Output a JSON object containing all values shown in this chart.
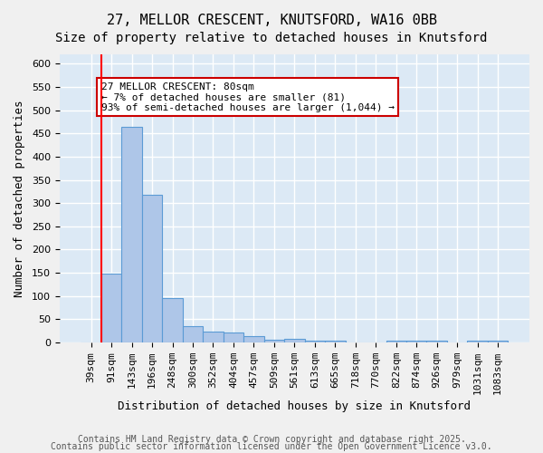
{
  "title1": "27, MELLOR CRESCENT, KNUTSFORD, WA16 0BB",
  "title2": "Size of property relative to detached houses in Knutsford",
  "xlabel": "Distribution of detached houses by size in Knutsford",
  "ylabel": "Number of detached properties",
  "categories": [
    "39sqm",
    "91sqm",
    "143sqm",
    "196sqm",
    "248sqm",
    "300sqm",
    "352sqm",
    "404sqm",
    "457sqm",
    "509sqm",
    "561sqm",
    "613sqm",
    "665sqm",
    "718sqm",
    "770sqm",
    "822sqm",
    "874sqm",
    "926sqm",
    "979sqm",
    "1031sqm",
    "1083sqm"
  ],
  "values": [
    0,
    148,
    465,
    318,
    95,
    36,
    24,
    22,
    13,
    6,
    8,
    5,
    4,
    1,
    0,
    5,
    4,
    4,
    0,
    4,
    5
  ],
  "bar_color": "#aec6e8",
  "bar_edge_color": "#5b9bd5",
  "background_color": "#dce9f5",
  "grid_color": "#ffffff",
  "annotation_box_text": "27 MELLOR CRESCENT: 80sqm\n← 7% of detached houses are smaller (81)\n93% of semi-detached houses are larger (1,044) →",
  "annotation_box_color": "#ffffff",
  "annotation_box_edge_color": "#cc0000",
  "red_line_x": 0.5,
  "ylim": [
    0,
    620
  ],
  "yticks": [
    0,
    50,
    100,
    150,
    200,
    250,
    300,
    350,
    400,
    450,
    500,
    550,
    600
  ],
  "footer1": "Contains HM Land Registry data © Crown copyright and database right 2025.",
  "footer2": "Contains public sector information licensed under the Open Government Licence v3.0.",
  "title_fontsize": 11,
  "subtitle_fontsize": 10,
  "axis_label_fontsize": 9,
  "tick_fontsize": 8,
  "annotation_fontsize": 8,
  "footer_fontsize": 7
}
